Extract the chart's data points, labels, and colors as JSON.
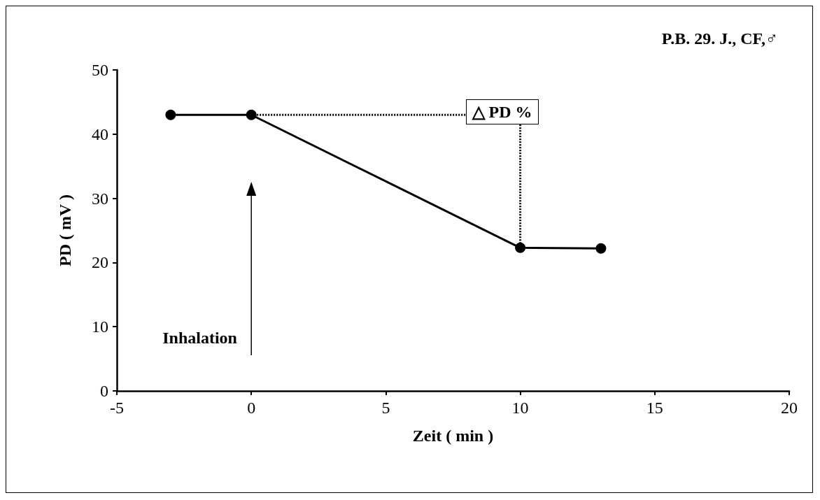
{
  "chart_data": {
    "type": "line",
    "xlabel": "Zeit ( min )",
    "ylabel": "PD ( mV )",
    "x": [
      -3,
      0,
      10,
      13
    ],
    "series": [
      {
        "color": "#000000",
        "values": [
          43,
          43,
          22.3,
          22.2
        ]
      }
    ],
    "xlim": [
      -5,
      20
    ],
    "xticks": [
      -5,
      0,
      5,
      10,
      15,
      20
    ],
    "ylim": [
      0,
      50
    ],
    "yticks": [
      0,
      10,
      20,
      30,
      40,
      50
    ],
    "marker": "circle",
    "line_style": "solid",
    "annotations": [
      "P.B. 29. J., CF,♂",
      {
        "text": "△ PD %",
        "x": 10,
        "y": 22.3
      },
      "Inhalation"
    ]
  }
}
